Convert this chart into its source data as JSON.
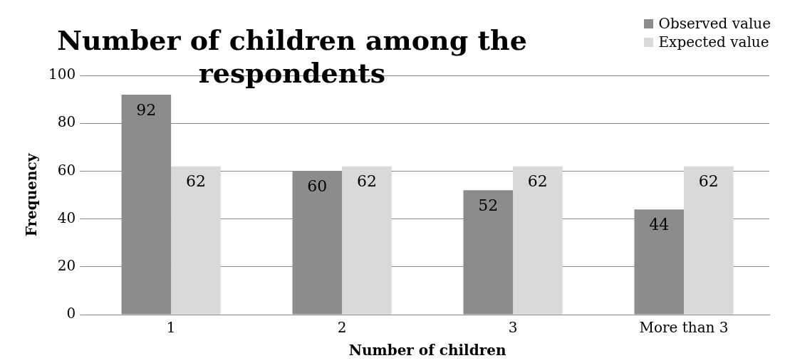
{
  "chart_data": {
    "type": "bar",
    "title": "Number of children among the respondents",
    "xlabel": "Number of children",
    "ylabel": "Frequency",
    "categories": [
      "1",
      "2",
      "3",
      "More than 3"
    ],
    "series": [
      {
        "name": "Observed value",
        "color": "#8c8c8c",
        "values": [
          92,
          60,
          52,
          44
        ]
      },
      {
        "name": "Expected value",
        "color": "#d9d9d9",
        "values": [
          62,
          62,
          62,
          62
        ]
      }
    ],
    "ylim": [
      0,
      100
    ],
    "yticks": [
      0,
      20,
      40,
      60,
      80,
      100
    ],
    "grid": "y",
    "legend": "top right",
    "data_labels": true
  }
}
